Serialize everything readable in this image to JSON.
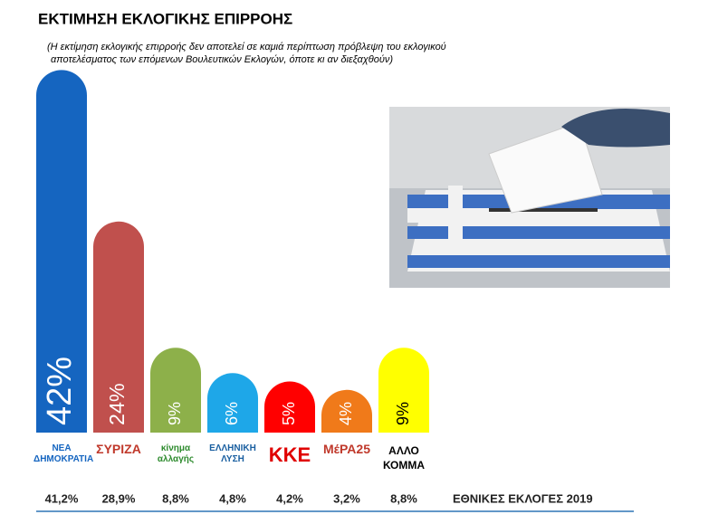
{
  "chart_data": {
    "type": "bar",
    "title": "ΕΚΤΙΜΗΣΗ ΕΚΛΟΓΙΚΗΣ ΕΠΙΡΡΟΗΣ",
    "subtitle": [
      "(Η εκτίμηση εκλογικής επιρροής δεν αποτελεί σε καμιά περίπτωση πρόβλεψη του εκλογικού",
      "αποτελέσματος των επόμενων Βουλευτικών Εκλογών, όποτε κι αν διεξαχθούν)"
    ],
    "categories": [
      "ΝΕΑ ΔΗΜΟΚΡΑΤΙΑ",
      "ΣΥΡΙΖΑ",
      "κίνημα αλλαγής",
      "ΕΛΛΗΝΙΚΗ ΛΥΣΗ",
      "ΚΚΕ",
      "ΜέΡΑ25",
      "ΑΛΛΟ ΚΟΜΜΑ"
    ],
    "values": [
      42,
      24,
      9,
      6,
      5,
      4,
      9
    ],
    "value_labels": [
      "42%",
      "24%",
      "9%",
      "6%",
      "5%",
      "4%",
      "9%"
    ],
    "colors": [
      "#1565c0",
      "#c0504d",
      "#8db04a",
      "#1ea7e8",
      "#ff0000",
      "#f07a1a",
      "#ffff00"
    ],
    "previous": {
      "label": "ΕΘΝΙΚΕΣ ΕΚΛΟΓΕΣ 2019",
      "values": [
        41.2,
        28.9,
        8.8,
        4.8,
        4.2,
        3.2,
        8.8
      ],
      "value_labels": [
        "41,2%",
        "28,9%",
        "8,8%",
        "4,8%",
        "4,2%",
        "3,2%",
        "8,8%"
      ]
    }
  }
}
